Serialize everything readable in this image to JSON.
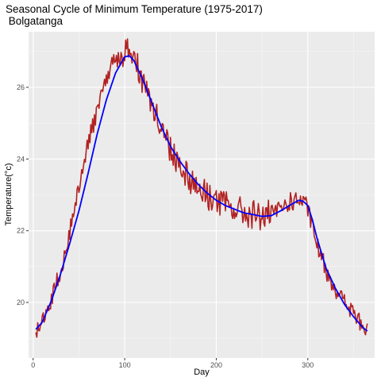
{
  "chart_data": {
    "type": "line",
    "title": "Seasonal Cycle of Minimum Temperature (1975-2017)",
    "subtitle": " Bolgatanga",
    "xlabel": "Day",
    "ylabel": "Temperature(°c)",
    "xlim": [
      -5,
      373
    ],
    "ylim": [
      18.45,
      27.55
    ],
    "x_ticks": [
      0,
      100,
      200,
      300
    ],
    "y_ticks": [
      20,
      22,
      24,
      26
    ],
    "grid": true,
    "legend": "none",
    "series": [
      {
        "color": "#b22222",
        "style": "noisy-daily",
        "x": [
          3,
          8,
          15,
          22,
          30,
          38,
          45,
          52,
          60,
          68,
          75,
          82,
          88,
          95,
          100,
          105,
          110,
          115,
          120,
          125,
          130,
          135,
          140,
          145,
          150,
          155,
          160,
          165,
          170,
          175,
          180,
          185,
          190,
          200,
          210,
          220,
          230,
          240,
          250,
          260,
          270,
          280,
          290,
          295,
          300,
          305,
          310,
          320,
          330,
          340,
          350,
          360,
          365
        ],
        "values": [
          19.2,
          19.3,
          19.7,
          20.3,
          20.9,
          21.7,
          22.6,
          23.5,
          24.4,
          25.2,
          25.9,
          26.4,
          26.7,
          26.9,
          26.95,
          27.0,
          26.85,
          26.6,
          26.2,
          25.8,
          25.5,
          25.2,
          24.9,
          24.6,
          24.3,
          24.1,
          23.9,
          23.7,
          23.5,
          23.35,
          23.2,
          23.1,
          23.0,
          22.85,
          22.7,
          22.6,
          22.5,
          22.45,
          22.4,
          22.45,
          22.6,
          22.8,
          22.85,
          22.8,
          22.6,
          22.1,
          21.6,
          20.9,
          20.4,
          20.0,
          19.7,
          19.3,
          19.2
        ]
      },
      {
        "color": "#0000ff",
        "style": "smooth",
        "x": [
          3,
          10,
          20,
          30,
          40,
          50,
          60,
          70,
          80,
          90,
          100,
          105,
          110,
          120,
          130,
          140,
          150,
          160,
          170,
          180,
          190,
          200,
          210,
          220,
          230,
          240,
          250,
          260,
          270,
          280,
          290,
          295,
          300,
          305,
          310,
          320,
          330,
          340,
          350,
          360,
          365
        ],
        "values": [
          19.25,
          19.45,
          20.05,
          20.8,
          21.65,
          22.55,
          23.6,
          24.7,
          25.65,
          26.4,
          26.85,
          26.88,
          26.75,
          26.2,
          25.55,
          24.9,
          24.35,
          23.95,
          23.6,
          23.3,
          23.05,
          22.85,
          22.7,
          22.6,
          22.5,
          22.45,
          22.4,
          22.42,
          22.55,
          22.7,
          22.85,
          22.82,
          22.7,
          22.3,
          21.8,
          20.95,
          20.4,
          19.95,
          19.6,
          19.3,
          19.2
        ]
      }
    ]
  }
}
